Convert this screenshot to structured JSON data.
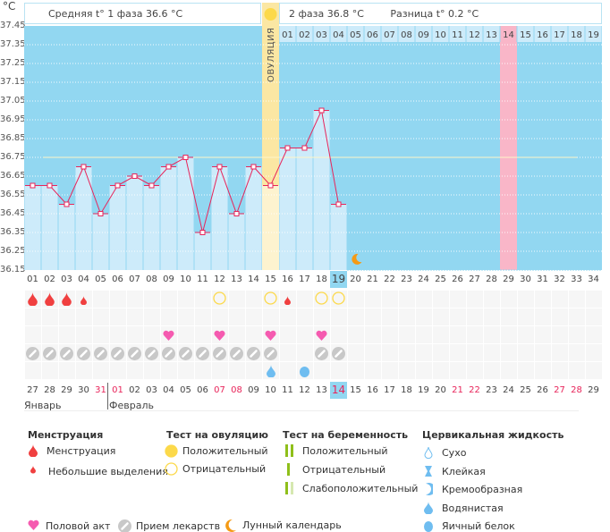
{
  "chart_data": {
    "type": "line",
    "ylabel": "°C",
    "ylim": [
      36.15,
      37.45
    ],
    "y_ticks": [
      "37.45",
      "37.35",
      "37.25",
      "37.15",
      "37.05",
      "36.95",
      "36.85",
      "36.75",
      "36.65",
      "36.55",
      "36.45",
      "36.35",
      "36.25",
      "36.15"
    ],
    "grid": true,
    "cycle_days": [
      "01",
      "02",
      "03",
      "04",
      "05",
      "06",
      "07",
      "08",
      "09",
      "10",
      "11",
      "12",
      "13",
      "14",
      "15",
      "16",
      "17",
      "18",
      "19",
      "20",
      "21",
      "22",
      "23",
      "24",
      "25",
      "26",
      "27",
      "28",
      "29",
      "30",
      "31",
      "32",
      "33",
      "34"
    ],
    "temperatures": [
      36.6,
      36.6,
      36.5,
      36.7,
      36.45,
      36.6,
      36.65,
      36.6,
      36.7,
      36.75,
      36.35,
      36.7,
      36.45,
      36.7,
      36.6,
      36.8,
      36.8,
      37.0,
      36.5
    ],
    "coverline": 36.75,
    "ovulation_day": 15,
    "ovulation_label": "ОВУЛЯЦИЯ",
    "current_day": 19,
    "predicted_day": 29,
    "phase2_days": [
      "01",
      "02",
      "03",
      "04",
      "05",
      "06",
      "07",
      "08",
      "09",
      "10",
      "11",
      "12",
      "13",
      "14",
      "15",
      "16",
      "17",
      "18",
      "19"
    ],
    "moon_day": 20
  },
  "header": {
    "phase1": "Средняя t° 1 фаза 36.6 °C",
    "phase2": "2 фаза 36.8 °C",
    "difference": "Разница t° 0.2 °C"
  },
  "events": {
    "menstruation_full": [
      1,
      2,
      3
    ],
    "menstruation_light": [
      4,
      16
    ],
    "ovulation_test_negative": [
      12,
      15,
      18,
      19
    ],
    "intercourse": [
      9,
      12,
      15,
      18
    ],
    "medication": [
      1,
      2,
      3,
      4,
      5,
      6,
      7,
      8,
      9,
      10,
      11,
      12,
      13,
      14,
      15,
      18,
      19
    ],
    "fluid_watery": [
      15
    ],
    "fluid_eggwhite": [
      17
    ]
  },
  "calendar": {
    "dates": [
      "27",
      "28",
      "29",
      "30",
      "31",
      "01",
      "02",
      "03",
      "04",
      "05",
      "06",
      "07",
      "08",
      "09",
      "10",
      "11",
      "12",
      "13",
      "14",
      "15",
      "16",
      "17",
      "18",
      "19",
      "20",
      "21",
      "22",
      "23",
      "24",
      "25",
      "26",
      "27",
      "28",
      "29"
    ],
    "red_dates_index": [
      4,
      5,
      11,
      12,
      18,
      25,
      26,
      31,
      32
    ],
    "today_index": 19,
    "months": [
      "Январь",
      "Февраль"
    ]
  },
  "legend": {
    "menstruation": {
      "title": "Менструация",
      "items": [
        "Менструация",
        "Небольшие выделения"
      ]
    },
    "ovulation_test": {
      "title": "Тест на овуляцию",
      "items": [
        "Положительный",
        "Отрицательный"
      ]
    },
    "pregnancy_test": {
      "title": "Тест на беременность",
      "items": [
        "Положительный",
        "Отрицательный",
        "Слабоположительный"
      ]
    },
    "cervical_fluid": {
      "title": "Цервикальная жидкость",
      "items": [
        "Сухо",
        "Клейкая",
        "Кремообразная",
        "Водянистая",
        "Яичный белок"
      ]
    },
    "bottom": [
      "Половой акт",
      "Прием лекарств",
      "Лунный календарь"
    ]
  },
  "colors": {
    "plot_bg": "#92d7f1",
    "bar": "#cdebfa",
    "line": "#e8245a",
    "ovulation": "#fbe7a3",
    "predicted": "#f9b6c8",
    "blood": "#f04040",
    "sun": "#fcd94a",
    "heart": "#f55bb0",
    "pill": "#c8c8c8",
    "fluid": "#6fbdf0",
    "moon": "#f59a14",
    "pregnancy": "#8fbf1a",
    "weekend": "#e8245a"
  }
}
